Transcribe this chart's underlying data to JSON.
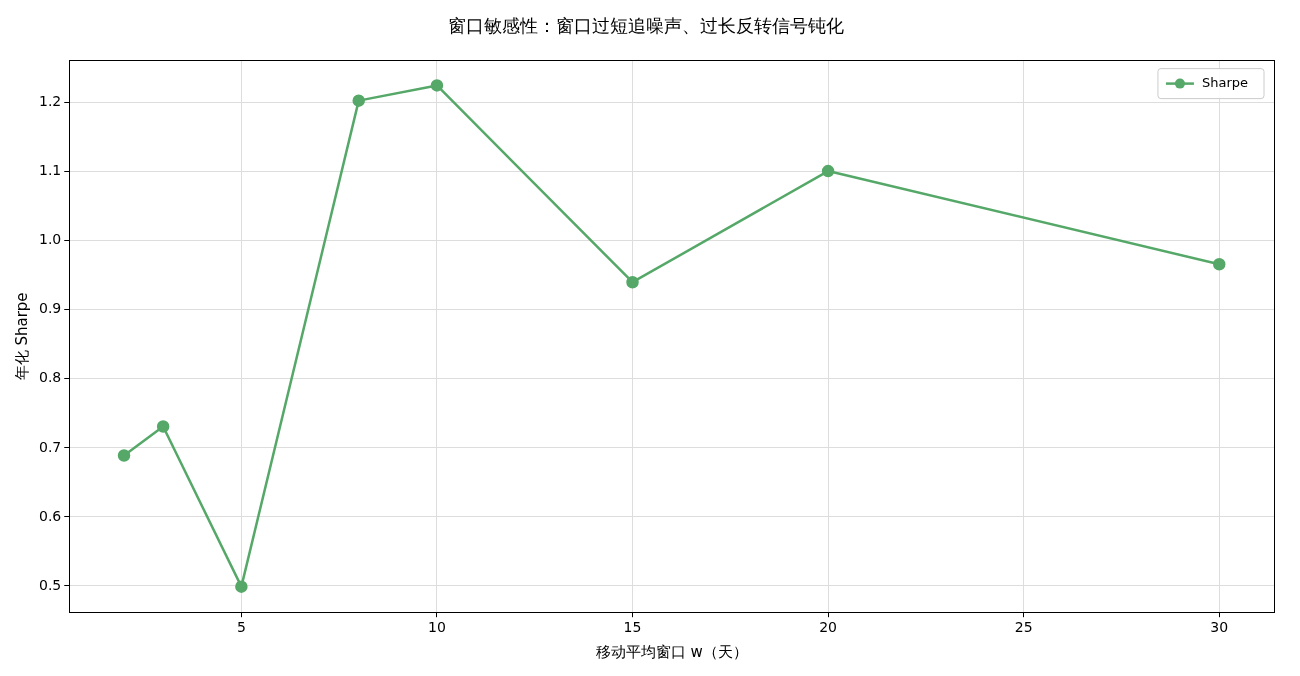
{
  "chart_data": {
    "type": "line",
    "title": "窗口敏感性：窗口过短追噪声、过长反转信号钝化",
    "xlabel": "移动平均窗口 w（天）",
    "ylabel": "年化 Sharpe",
    "x": [
      2,
      3,
      5,
      8,
      10,
      15,
      20,
      30
    ],
    "series": [
      {
        "name": "Sharpe",
        "color": "#55a868",
        "values": [
          0.689,
          0.731,
          0.499,
          1.203,
          1.225,
          0.94,
          1.101,
          0.966
        ]
      }
    ],
    "xlim": [
      0.6,
      31.4
    ],
    "xticks": [
      5,
      10,
      15,
      20,
      25,
      30
    ],
    "ylim": [
      0.462,
      1.261
    ],
    "yticks": [
      0.5,
      0.6,
      0.7,
      0.8,
      0.9,
      {
        "value": 1,
        "label": "1.0"
      },
      1.1,
      1.2
    ],
    "grid": true,
    "legend": "top right",
    "marker": "circle",
    "line_style": "solid"
  }
}
